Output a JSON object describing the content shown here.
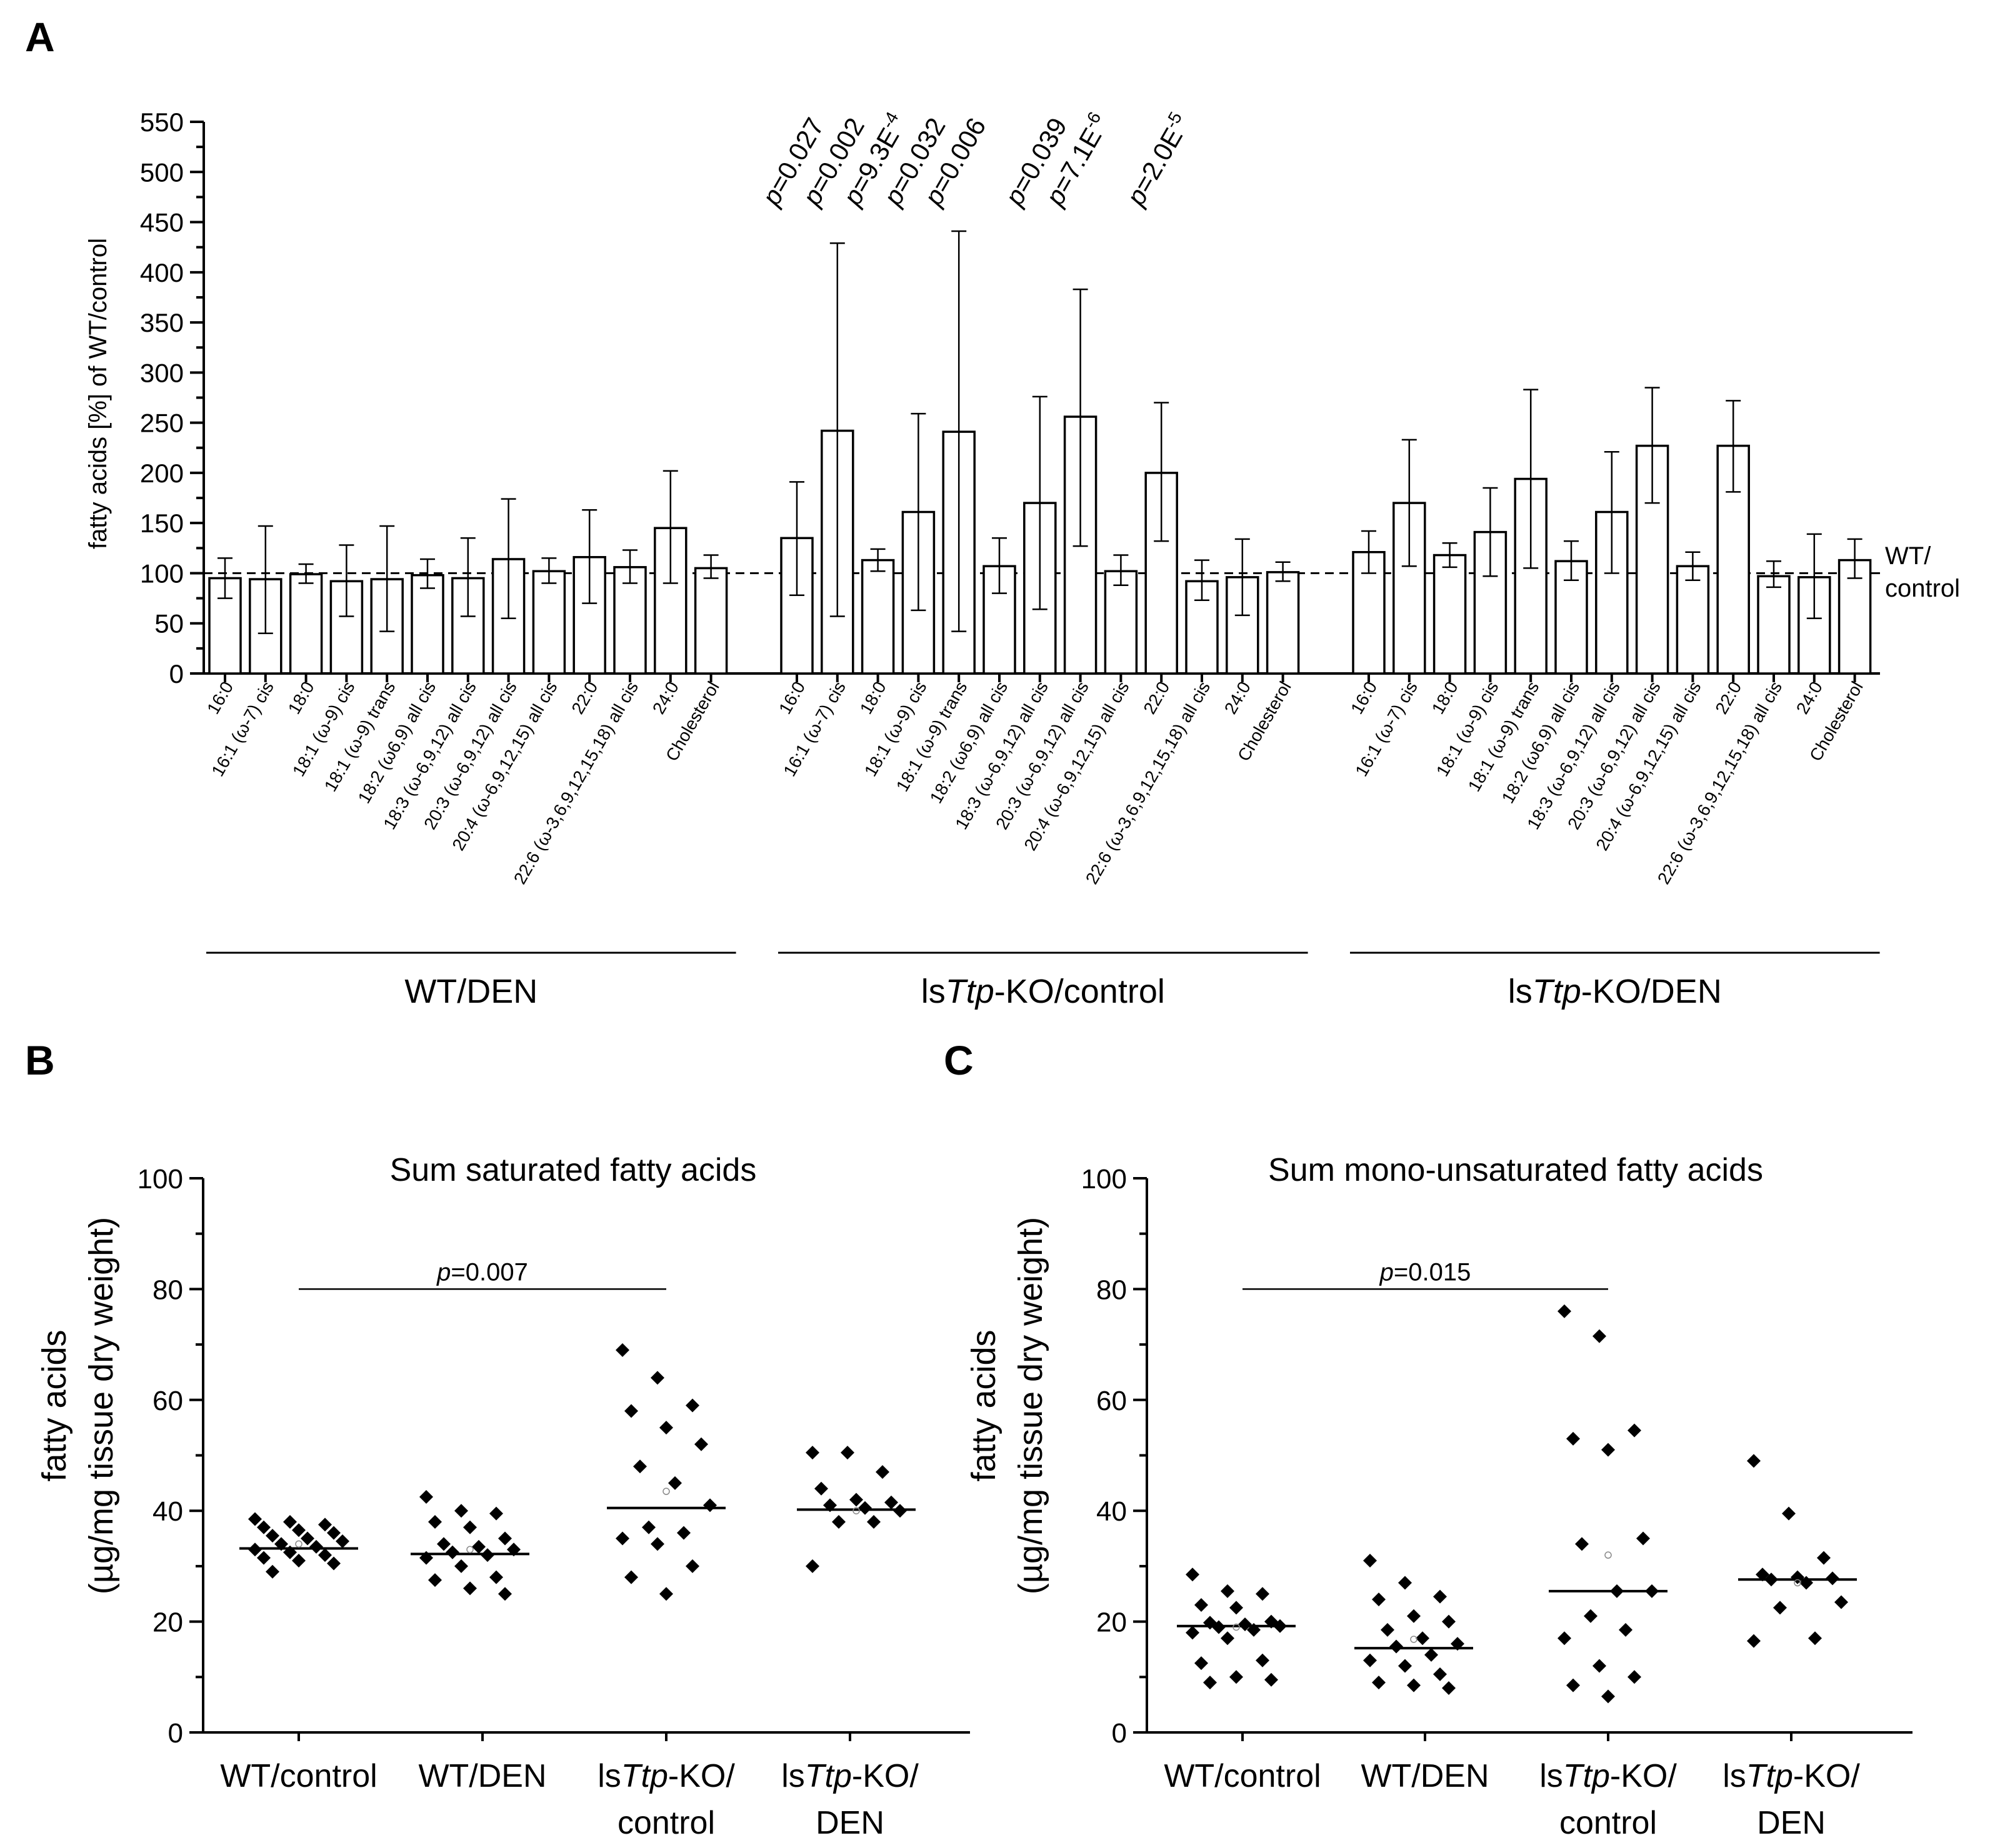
{
  "chart_data": [
    {
      "panel": "A",
      "type": "bar",
      "ylabel": "fatty acids [%] of WT/control",
      "ylim": [
        0,
        550
      ],
      "yticks": [
        0,
        50,
        100,
        150,
        200,
        250,
        300,
        350,
        400,
        450,
        500,
        550
      ],
      "reference_line": {
        "value": 100,
        "style": "dashed",
        "label_lines": [
          "WT/",
          "control"
        ]
      },
      "categories": [
        "16:0",
        "16:1 (ω-7) cis",
        "18:0",
        "18:1 (ω-9) cis",
        "18:1 (ω-9) trans",
        "18:2 (ω6,9) all cis",
        "18:3 (ω-6,9,12) all cis",
        "20:3 (ω-6,9,12) all cis",
        "20:4 (ω-6,9,12,15) all cis",
        "22:0",
        "22:6 (ω-3,6,9,12,15,18) all cis",
        "24:0",
        "Cholesterol"
      ],
      "series": [
        {
          "group": "WT/DEN",
          "group_parts": [
            "WT/DEN",
            "",
            ""
          ],
          "values": [
            95,
            94,
            99,
            92,
            94,
            98,
            95,
            114,
            102,
            116,
            106,
            145,
            105
          ],
          "err_low": [
            75,
            40,
            90,
            57,
            42,
            85,
            57,
            55,
            90,
            70,
            90,
            90,
            95
          ],
          "err_high": [
            115,
            147,
            109,
            128,
            147,
            114,
            135,
            174,
            115,
            163,
            123,
            202,
            118
          ],
          "pvalues": []
        },
        {
          "group": "lsTtp-KO/control",
          "group_parts": [
            "ls",
            "Ttp",
            "-KO/control"
          ],
          "values": [
            135,
            242,
            113,
            161,
            241,
            107,
            170,
            256,
            102,
            200,
            92,
            96,
            101
          ],
          "err_low": [
            78,
            57,
            102,
            63,
            42,
            80,
            64,
            127,
            88,
            132,
            73,
            58,
            92
          ],
          "err_high": [
            191,
            429,
            124,
            259,
            441,
            135,
            276,
            383,
            118,
            270,
            113,
            134,
            111
          ],
          "pvalues": [
            {
              "index": 0,
              "text": "=0.027"
            },
            {
              "index": 1,
              "text": "=0.002"
            },
            {
              "index": 2,
              "text": "=9.3E",
              "exp": "-4"
            },
            {
              "index": 3,
              "text": "=0.032"
            },
            {
              "index": 4,
              "text": "=0.006"
            },
            {
              "index": 6,
              "text": "=0.039"
            },
            {
              "index": 7,
              "text": "=7.1E",
              "exp": "-6"
            },
            {
              "index": 9,
              "text": "=2.0E",
              "exp": "-5"
            }
          ]
        },
        {
          "group": "lsTtp-KO/DEN",
          "group_parts": [
            "ls",
            "Ttp",
            "-KO/DEN"
          ],
          "values": [
            121,
            170,
            118,
            141,
            194,
            112,
            161,
            227,
            107,
            227,
            97,
            96,
            113
          ],
          "err_low": [
            100,
            107,
            106,
            97,
            105,
            93,
            100,
            170,
            93,
            181,
            86,
            55,
            95
          ],
          "err_high": [
            142,
            233,
            130,
            185,
            283,
            132,
            221,
            285,
            121,
            272,
            112,
            139,
            134
          ],
          "pvalues": []
        }
      ]
    },
    {
      "panel": "B",
      "type": "scatter",
      "title": "Sum saturated fatty acids",
      "ylabel_lines": [
        "fatty acids",
        "(µg/mg tissue dry weight)"
      ],
      "ylim": [
        0,
        100
      ],
      "yticks": [
        0,
        20,
        40,
        60,
        80,
        100
      ],
      "categories": [
        {
          "l1_parts": [
            "WT/control",
            "",
            ""
          ],
          "l2": ""
        },
        {
          "l1_parts": [
            "WT/DEN",
            "",
            ""
          ],
          "l2": ""
        },
        {
          "l1_parts": [
            "ls",
            "Ttp",
            "-KO/"
          ],
          "l2": "control"
        },
        {
          "l1_parts": [
            "ls",
            "Ttp",
            "-KO/"
          ],
          "l2": "DEN"
        }
      ],
      "groups": [
        {
          "median": 33.2,
          "mean": 34.0,
          "points": [
            38.5,
            38.0,
            37.5,
            37.0,
            36.5,
            36.0,
            35.5,
            35.0,
            34.5,
            34.0,
            33.5,
            33.0,
            32.5,
            32.0,
            31.5,
            31.0,
            30.5,
            29.0
          ]
        },
        {
          "median": 32.2,
          "mean": 33.0,
          "points": [
            42.5,
            40.0,
            39.5,
            38.0,
            37.0,
            35.0,
            34.0,
            33.5,
            33.0,
            32.5,
            32.0,
            31.5,
            30.0,
            28.0,
            27.5,
            26.0,
            25.0
          ]
        },
        {
          "median": 40.5,
          "mean": 43.5,
          "points": [
            69.0,
            64.0,
            59.0,
            58.0,
            55.0,
            52.0,
            48.0,
            45.0,
            41.0,
            37.0,
            36.0,
            35.0,
            34.0,
            30.0,
            28.0,
            25.0
          ]
        },
        {
          "median": 40.2,
          "mean": 40.0,
          "points": [
            50.5,
            50.5,
            47.0,
            44.0,
            42.0,
            41.5,
            41.0,
            40.5,
            40.0,
            38.0,
            38.0,
            30.0
          ]
        }
      ],
      "bracket": {
        "from": 0,
        "to": 2,
        "y": 80,
        "text": "=0.007"
      }
    },
    {
      "panel": "C",
      "type": "scatter",
      "title": "Sum mono-unsaturated fatty acids",
      "ylabel_lines": [
        "fatty acids",
        "(µg/mg tissue dry weight)"
      ],
      "ylim": [
        0,
        100
      ],
      "yticks": [
        0,
        20,
        40,
        60,
        80,
        100
      ],
      "categories": [
        {
          "l1_parts": [
            "WT/control",
            "",
            ""
          ],
          "l2": ""
        },
        {
          "l1_parts": [
            "WT/DEN",
            "",
            ""
          ],
          "l2": ""
        },
        {
          "l1_parts": [
            "ls",
            "Ttp",
            "-KO/"
          ],
          "l2": "control"
        },
        {
          "l1_parts": [
            "ls",
            "Ttp",
            "-KO/"
          ],
          "l2": "DEN"
        }
      ],
      "groups": [
        {
          "median": 19.2,
          "mean": 19.0,
          "points": [
            28.5,
            25.5,
            25.0,
            23.0,
            22.5,
            20.0,
            19.8,
            19.5,
            19.2,
            19.0,
            18.5,
            18.0,
            17.0,
            13.0,
            12.5,
            10.0,
            9.5,
            9.0
          ]
        },
        {
          "median": 15.2,
          "mean": 16.8,
          "points": [
            31.0,
            27.0,
            24.5,
            24.0,
            21.0,
            20.0,
            18.5,
            17.0,
            16.0,
            15.5,
            14.0,
            13.0,
            12.0,
            10.5,
            9.0,
            8.5,
            8.0
          ]
        },
        {
          "median": 25.5,
          "mean": 32.0,
          "points": [
            76.0,
            71.5,
            54.5,
            53.0,
            51.0,
            35.0,
            34.0,
            25.5,
            25.5,
            21.0,
            18.5,
            17.0,
            12.0,
            10.0,
            8.5,
            6.5
          ]
        },
        {
          "median": 27.6,
          "mean": 27.0,
          "points": [
            49.0,
            39.5,
            31.5,
            28.5,
            28.0,
            27.8,
            27.6,
            27.0,
            23.5,
            22.5,
            17.0,
            16.5
          ]
        }
      ],
      "bracket": {
        "from": 0,
        "to": 2,
        "y": 80,
        "text": "=0.015"
      }
    }
  ],
  "labels": {
    "panelA": "A",
    "panelB": "B",
    "panelC": "C",
    "p": "p"
  }
}
